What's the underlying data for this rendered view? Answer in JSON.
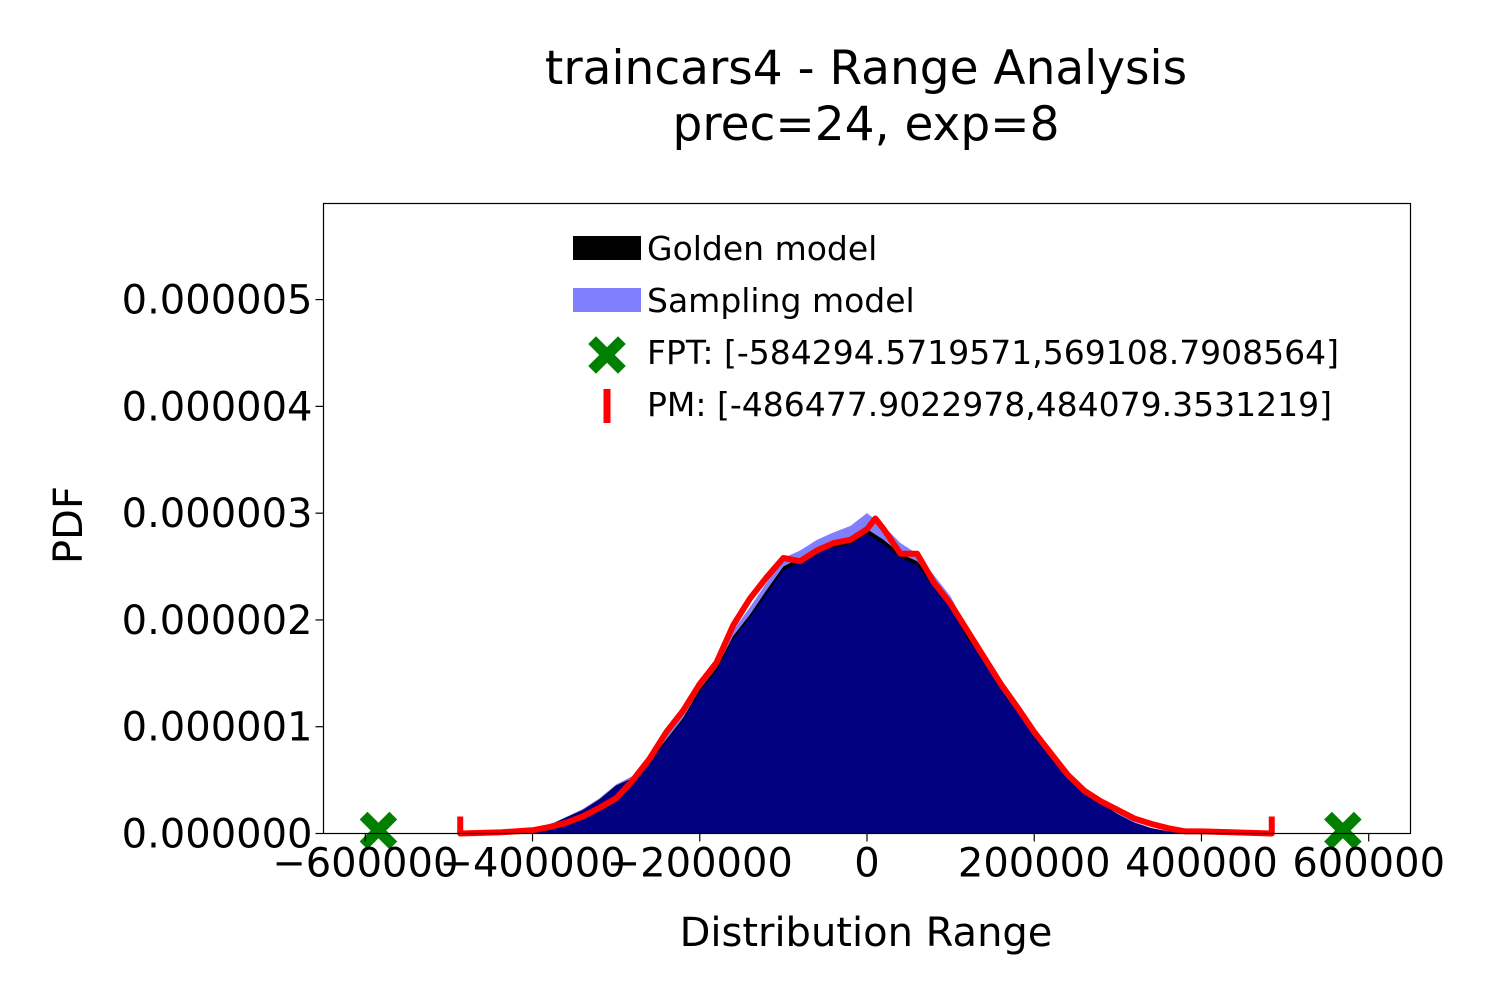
{
  "chart_data": {
    "type": "area",
    "title": [
      "traincars4 - Range Analysis",
      "prec=24, exp=8"
    ],
    "xlabel": "Distribution Range",
    "ylabel": "PDF",
    "xlim": [
      -650000,
      650000
    ],
    "ylim": [
      0,
      5.9e-06
    ],
    "x_ticks": [
      -600000,
      -400000,
      -200000,
      0,
      200000,
      400000,
      600000
    ],
    "x_tick_labels": [
      "−600000",
      "−400000",
      "−200000",
      "0",
      "200000",
      "400000",
      "600000"
    ],
    "y_ticks": [
      0,
      1e-06,
      2e-06,
      3e-06,
      4e-06,
      5e-06
    ],
    "y_tick_labels": [
      "0.000000",
      "0.000001",
      "0.000002",
      "0.000003",
      "0.000004",
      "0.000005"
    ],
    "grid": false,
    "legend_position": "top-center",
    "colors": {
      "golden": "#000000",
      "sampling": "#8080ff",
      "overlap": "#000080",
      "pm": "#ff0000",
      "fpt": "#008000"
    },
    "legend": [
      {
        "label": "Golden model",
        "kind": "golden"
      },
      {
        "label": "Sampling model",
        "kind": "sampling"
      },
      {
        "label": "FPT: [-584294.5719571,569108.7908564]",
        "kind": "fpt"
      },
      {
        "label": "PM: [-486477.9022978,484079.3531219]",
        "kind": "pm"
      }
    ],
    "series": [
      {
        "name": "Golden model",
        "x": [
          -420000,
          -380000,
          -340000,
          -320000,
          -300000,
          -280000,
          -260000,
          -240000,
          -220000,
          -200000,
          -180000,
          -160000,
          -140000,
          -120000,
          -100000,
          -80000,
          -60000,
          -40000,
          -20000,
          0,
          20000,
          40000,
          60000,
          80000,
          100000,
          120000,
          140000,
          160000,
          180000,
          200000,
          220000,
          240000,
          260000,
          280000,
          300000,
          320000,
          340000,
          360000,
          400000
        ],
        "y": [
          2e-08,
          8e-08,
          2.2e-07,
          3.2e-07,
          4.5e-07,
          5.2e-07,
          6.8e-07,
          8.8e-07,
          1.08e-06,
          1.35e-06,
          1.55e-06,
          1.85e-06,
          2.05e-06,
          2.28e-06,
          2.5e-06,
          2.58e-06,
          2.68e-06,
          2.72e-06,
          2.75e-06,
          2.85e-06,
          2.75e-06,
          2.62e-06,
          2.55e-06,
          2.35e-06,
          2.15e-06,
          1.85e-06,
          1.65e-06,
          1.4e-06,
          1.15e-06,
          9.5e-07,
          7.5e-07,
          5.5e-07,
          4e-07,
          2.8e-07,
          1.8e-07,
          1e-07,
          5e-08,
          2e-08,
          0.0
        ]
      },
      {
        "name": "Sampling model",
        "x": [
          -420000,
          -380000,
          -340000,
          -320000,
          -300000,
          -280000,
          -260000,
          -240000,
          -220000,
          -200000,
          -180000,
          -160000,
          -140000,
          -120000,
          -100000,
          -80000,
          -60000,
          -40000,
          -20000,
          0,
          20000,
          40000,
          60000,
          80000,
          100000,
          120000,
          140000,
          160000,
          180000,
          200000,
          220000,
          240000,
          260000,
          280000,
          300000,
          320000,
          340000,
          360000,
          400000
        ],
        "y": [
          2e-08,
          8e-08,
          2.3e-07,
          3.3e-07,
          4.6e-07,
          5.4e-07,
          7e-07,
          9.2e-07,
          1.12e-06,
          1.4e-06,
          1.6e-06,
          1.9e-06,
          2.12e-06,
          2.35e-06,
          2.58e-06,
          2.65e-06,
          2.75e-06,
          2.82e-06,
          2.88e-06,
          3e-06,
          2.88e-06,
          2.72e-06,
          2.62e-06,
          2.42e-06,
          2.22e-06,
          1.92e-06,
          1.7e-06,
          1.45e-06,
          1.18e-06,
          9.8e-07,
          7.8e-07,
          5.7e-07,
          4.1e-07,
          2.9e-07,
          1.9e-07,
          1.1e-07,
          5e-08,
          2e-08,
          0.0
        ]
      },
      {
        "name": "PM: [-486477.9022978,484079.3531219]",
        "x": [
          -486478,
          -440000,
          -400000,
          -380000,
          -360000,
          -340000,
          -320000,
          -300000,
          -280000,
          -260000,
          -240000,
          -220000,
          -200000,
          -180000,
          -160000,
          -140000,
          -120000,
          -100000,
          -80000,
          -60000,
          -40000,
          -20000,
          0,
          10000,
          20000,
          40000,
          60000,
          80000,
          100000,
          120000,
          140000,
          160000,
          180000,
          200000,
          220000,
          240000,
          260000,
          280000,
          300000,
          320000,
          340000,
          360000,
          380000,
          400000,
          440000,
          484079
        ],
        "y": [
          0.0,
          1e-08,
          3e-08,
          6e-08,
          1e-07,
          1.6e-07,
          2.4e-07,
          3.3e-07,
          5e-07,
          7e-07,
          9.5e-07,
          1.15e-06,
          1.4e-06,
          1.6e-06,
          1.95e-06,
          2.2e-06,
          2.4e-06,
          2.58e-06,
          2.55e-06,
          2.65e-06,
          2.72e-06,
          2.75e-06,
          2.85e-06,
          2.95e-06,
          2.85e-06,
          2.62e-06,
          2.62e-06,
          2.35e-06,
          2.15e-06,
          1.9e-06,
          1.65e-06,
          1.4e-06,
          1.18e-06,
          9.5e-07,
          7.5e-07,
          5.5e-07,
          4e-07,
          3e-07,
          2.2e-07,
          1.4e-07,
          9e-08,
          5e-08,
          2e-08,
          2e-08,
          1e-08,
          0.0
        ]
      }
    ],
    "fpt_range": [
      -584294.5719571,
      569108.7908564
    ],
    "pm_range": [
      -486477.9022978,
      484079.3531219
    ]
  }
}
